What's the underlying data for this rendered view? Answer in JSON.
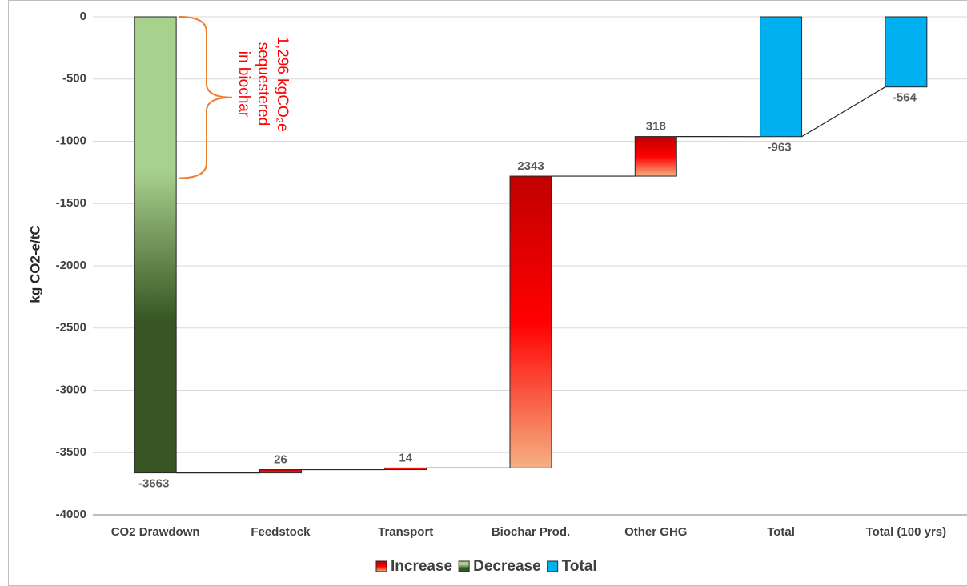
{
  "chart_data": {
    "type": "waterfall",
    "y_label": "kg CO2-e/tC",
    "categories": [
      "CO2 Drawdown",
      "Feedstock",
      "Transport",
      "Biochar Prod.",
      "Other GHG",
      "Total",
      "Total (100 yrs)"
    ],
    "series": [
      {
        "name": "Increase",
        "kind": "increase",
        "colors": [
          "#c00000",
          "#ff0000",
          "#f4b183"
        ],
        "values": [
          null,
          26,
          14,
          2343,
          318,
          null,
          null
        ]
      },
      {
        "name": "Decrease",
        "kind": "decrease",
        "colors": [
          "#a9d18e",
          "#a9d18e",
          "#375623",
          "#375623"
        ],
        "values": [
          -3663,
          null,
          null,
          null,
          null,
          null,
          null
        ]
      },
      {
        "name": "Total",
        "kind": "total",
        "colors": [
          "#00b0f0"
        ],
        "values": [
          null,
          null,
          null,
          null,
          null,
          -963,
          -564
        ]
      }
    ],
    "ylim": [
      -4000,
      0
    ],
    "yticks": [
      0,
      -500,
      -1000,
      -1500,
      -2000,
      -2500,
      -3000,
      -3500,
      -4000
    ],
    "grid": true,
    "legend": "bottom",
    "annotation": {
      "text": [
        "1,296 kgCO₂e",
        "sequestered",
        "in biochar"
      ],
      "color": "#ff0000",
      "brace_color": "#ed7d31",
      "span": [
        0,
        -1296
      ]
    }
  }
}
